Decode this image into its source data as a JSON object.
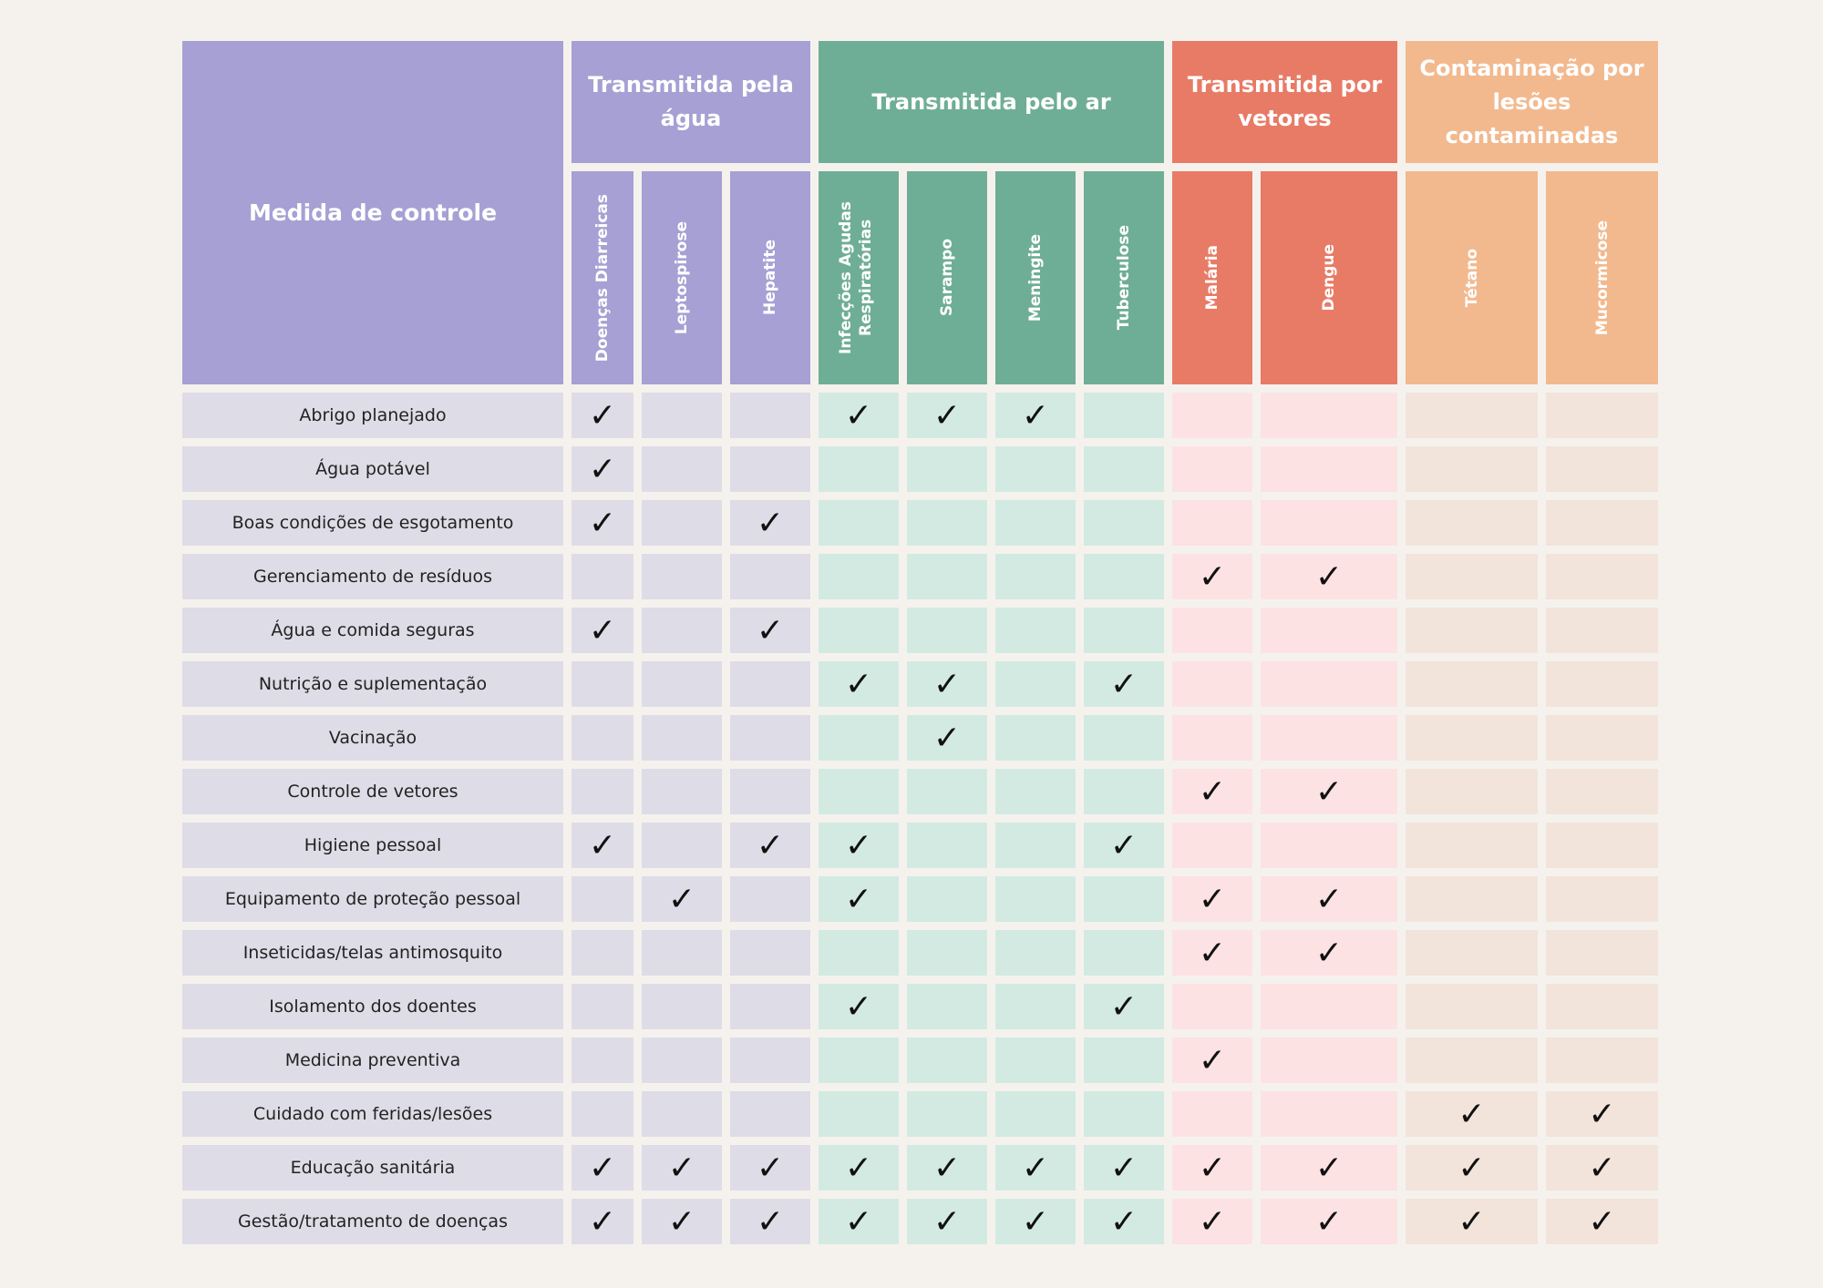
{
  "colors": {
    "water": "#a6a0d4",
    "water_light": "#dedce6",
    "air": "#6fae96",
    "air_light": "#d2eae2",
    "vector": "#e87b66",
    "vector_light": "#fde2e3",
    "wound": "#f2b98f",
    "wound_light": "#f2e4da"
  },
  "header": {
    "title": "Medida de controle"
  },
  "groups": [
    {
      "key": "water",
      "label": "Transmitida pela água",
      "span": 3
    },
    {
      "key": "air",
      "label": "Transmitida pelo ar",
      "span": 4
    },
    {
      "key": "vector",
      "label": "Transmitida por vetores",
      "span": 2
    },
    {
      "key": "wound",
      "label": "Contaminação por lesões contaminadas",
      "span": 2
    }
  ],
  "diseases": [
    {
      "label": "Doenças Diarreicas",
      "group": "water"
    },
    {
      "label": "Leptospirose",
      "group": "water"
    },
    {
      "label": "Hepatite",
      "group": "water"
    },
    {
      "label": "Infecções Agudas Respiratórias",
      "group": "air"
    },
    {
      "label": "Sarampo",
      "group": "air"
    },
    {
      "label": "Meningite",
      "group": "air"
    },
    {
      "label": "Tuberculose",
      "group": "air"
    },
    {
      "label": "Malária",
      "group": "vector"
    },
    {
      "label": "Dengue",
      "group": "vector"
    },
    {
      "label": "Tétano",
      "group": "wound"
    },
    {
      "label": "Mucormicose",
      "group": "wound"
    }
  ],
  "check_symbol": "✓",
  "rows": [
    {
      "label": "Abrigo planejado",
      "checks": [
        1,
        0,
        0,
        1,
        1,
        1,
        0,
        0,
        0,
        0,
        0
      ]
    },
    {
      "label": "Água potável",
      "checks": [
        1,
        0,
        0,
        0,
        0,
        0,
        0,
        0,
        0,
        0,
        0
      ]
    },
    {
      "label": "Boas condições de esgotamento",
      "checks": [
        1,
        0,
        1,
        0,
        0,
        0,
        0,
        0,
        0,
        0,
        0
      ]
    },
    {
      "label": "Gerenciamento de resíduos",
      "checks": [
        0,
        0,
        0,
        0,
        0,
        0,
        0,
        1,
        1,
        0,
        0
      ]
    },
    {
      "label": "Água e comida seguras",
      "checks": [
        1,
        0,
        1,
        0,
        0,
        0,
        0,
        0,
        0,
        0,
        0
      ]
    },
    {
      "label": "Nutrição e suplementação",
      "checks": [
        0,
        0,
        0,
        1,
        1,
        0,
        1,
        0,
        0,
        0,
        0
      ]
    },
    {
      "label": "Vacinação",
      "checks": [
        0,
        0,
        0,
        0,
        1,
        0,
        0,
        0,
        0,
        0,
        0
      ]
    },
    {
      "label": "Controle de vetores",
      "checks": [
        0,
        0,
        0,
        0,
        0,
        0,
        0,
        1,
        1,
        0,
        0
      ]
    },
    {
      "label": "Higiene pessoal",
      "checks": [
        1,
        0,
        1,
        1,
        0,
        0,
        1,
        0,
        0,
        0,
        0
      ]
    },
    {
      "label": "Equipamento de proteção pessoal",
      "checks": [
        0,
        1,
        0,
        1,
        0,
        0,
        0,
        1,
        1,
        0,
        0
      ]
    },
    {
      "label": "Inseticidas/telas antimosquito",
      "checks": [
        0,
        0,
        0,
        0,
        0,
        0,
        0,
        1,
        1,
        0,
        0
      ]
    },
    {
      "label": "Isolamento dos doentes",
      "checks": [
        0,
        0,
        0,
        1,
        0,
        0,
        1,
        0,
        0,
        0,
        0
      ]
    },
    {
      "label": "Medicina preventiva",
      "checks": [
        0,
        0,
        0,
        0,
        0,
        0,
        0,
        1,
        0,
        0,
        0
      ]
    },
    {
      "label": "Cuidado com feridas/lesões",
      "checks": [
        0,
        0,
        0,
        0,
        0,
        0,
        0,
        0,
        0,
        1,
        1
      ]
    },
    {
      "label": "Educação sanitária",
      "checks": [
        1,
        1,
        1,
        1,
        1,
        1,
        1,
        1,
        1,
        1,
        1
      ]
    },
    {
      "label": "Gestão/tratamento de doenças",
      "checks": [
        1,
        1,
        1,
        1,
        1,
        1,
        1,
        1,
        1,
        1,
        1
      ]
    }
  ]
}
